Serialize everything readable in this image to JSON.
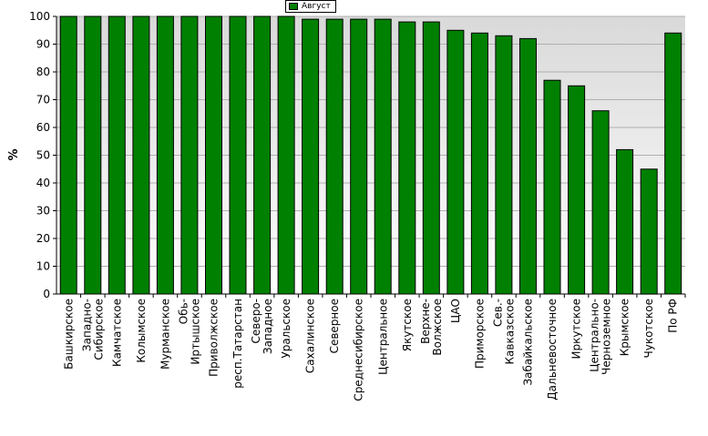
{
  "chart_data": {
    "type": "bar",
    "title": "",
    "xlabel": "",
    "ylabel": "%",
    "ylim": [
      0,
      100
    ],
    "yticks": [
      0,
      10,
      20,
      30,
      40,
      50,
      60,
      70,
      80,
      90,
      100
    ],
    "grid": true,
    "legend_position": "top-center",
    "colors": {
      "bar": "#008000",
      "bar_stroke": "#000000",
      "plot_bg_top": "#d9d9d9",
      "plot_bg_bottom": "#ffffff",
      "grid": "#b0b0b0"
    },
    "categories": [
      [
        "Башкирское"
      ],
      [
        "Западно-",
        "Сибирское"
      ],
      [
        "Камчатское"
      ],
      [
        "Колымское"
      ],
      [
        "Мурманское"
      ],
      [
        "Обь-",
        "Иртышское"
      ],
      [
        "Приволжское"
      ],
      [
        "респ.Татарстан"
      ],
      [
        "Северо-",
        "Западное"
      ],
      [
        "Уральское"
      ],
      [
        "Сахалинское"
      ],
      [
        "Северное"
      ],
      [
        "Среднесибирское"
      ],
      [
        "Центральное"
      ],
      [
        "Якутское"
      ],
      [
        "Верхне-",
        "Волжское"
      ],
      [
        "ЦАО"
      ],
      [
        "Приморское"
      ],
      [
        "Сев.-",
        "Кавказское"
      ],
      [
        "Забайкальское"
      ],
      [
        "Дальневосточное"
      ],
      [
        "Иркутское"
      ],
      [
        "Центрально-",
        "Черноземное"
      ],
      [
        "Крымское"
      ],
      [
        "Чукотское"
      ],
      [
        "По РФ"
      ]
    ],
    "series": [
      {
        "name": "Август",
        "values": [
          100,
          100,
          100,
          100,
          100,
          100,
          100,
          100,
          100,
          100,
          99,
          99,
          99,
          99,
          98,
          98,
          95,
          94,
          93,
          92,
          77,
          75,
          66,
          52,
          45,
          94
        ]
      }
    ]
  }
}
